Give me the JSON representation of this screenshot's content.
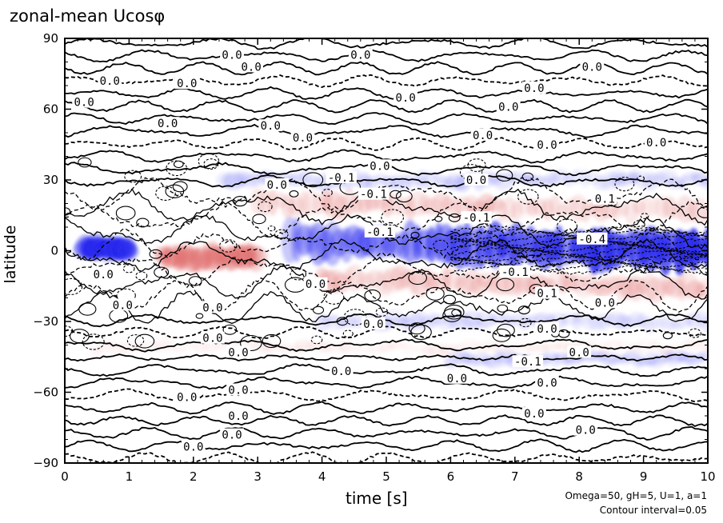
{
  "chart_data": {
    "type": "contour",
    "title": "zonal-mean Ucosφ",
    "xlabel": "time [s]",
    "ylabel": "latitude",
    "xlim": [
      0,
      10
    ],
    "ylim": [
      -90,
      90
    ],
    "xticks": [
      0,
      1,
      2,
      3,
      4,
      5,
      6,
      7,
      8,
      9,
      10
    ],
    "yticks": [
      90,
      60,
      30,
      0,
      -30,
      -60,
      -90
    ],
    "contour_interval": 0.05,
    "colors": {
      "positive": "#e06a6a",
      "negative": "#2a2aee",
      "contour": "#000000"
    },
    "contour_labels": [
      {
        "text": "0.0",
        "t": 2.6,
        "lat": 83
      },
      {
        "text": "0.0",
        "t": 2.9,
        "lat": 78
      },
      {
        "text": "0.0",
        "t": 4.6,
        "lat": 83
      },
      {
        "text": "0.0",
        "t": 8.2,
        "lat": 78
      },
      {
        "text": "0.0",
        "t": 0.7,
        "lat": 72
      },
      {
        "text": "0.0",
        "t": 1.9,
        "lat": 71
      },
      {
        "text": "0.0",
        "t": 7.3,
        "lat": 69
      },
      {
        "text": "0.0",
        "t": 5.3,
        "lat": 65
      },
      {
        "text": "0.0",
        "t": 0.3,
        "lat": 63
      },
      {
        "text": "0.0",
        "t": 6.9,
        "lat": 61
      },
      {
        "text": "0.0",
        "t": 1.6,
        "lat": 54
      },
      {
        "text": "0.0",
        "t": 3.2,
        "lat": 53
      },
      {
        "text": "0.0",
        "t": 3.7,
        "lat": 48
      },
      {
        "text": "0.0",
        "t": 6.5,
        "lat": 49
      },
      {
        "text": "0.0",
        "t": 7.5,
        "lat": 45
      },
      {
        "text": "0.0",
        "t": 9.2,
        "lat": 46
      },
      {
        "text": "0.0",
        "t": 4.9,
        "lat": 36
      },
      {
        "text": "0.0",
        "t": 3.3,
        "lat": 28
      },
      {
        "text": "0.0",
        "t": 6.4,
        "lat": 30
      },
      {
        "text": "-0.1",
        "t": 4.3,
        "lat": 31
      },
      {
        "text": "-0.1",
        "t": 4.8,
        "lat": 24
      },
      {
        "text": "0.1",
        "t": 8.4,
        "lat": 22
      },
      {
        "text": "-0.1",
        "t": 6.4,
        "lat": 14
      },
      {
        "text": "-0.1",
        "t": 4.9,
        "lat": 8
      },
      {
        "text": "-0.4",
        "t": 8.2,
        "lat": 5
      },
      {
        "text": "0.0",
        "t": 0.6,
        "lat": -10
      },
      {
        "text": "0.0",
        "t": 3.9,
        "lat": -14
      },
      {
        "text": "-0.1",
        "t": 7.0,
        "lat": -9
      },
      {
        "text": "0.1",
        "t": 7.5,
        "lat": -18
      },
      {
        "text": "0.0",
        "t": 8.4,
        "lat": -22
      },
      {
        "text": "0.0",
        "t": 0.9,
        "lat": -23
      },
      {
        "text": "0.0",
        "t": 2.3,
        "lat": -24
      },
      {
        "text": "0.0",
        "t": 4.8,
        "lat": -31
      },
      {
        "text": "0.0",
        "t": 7.5,
        "lat": -33
      },
      {
        "text": "0.0",
        "t": 2.3,
        "lat": -37
      },
      {
        "text": "0.0",
        "t": 2.7,
        "lat": -43
      },
      {
        "text": "0.0",
        "t": 8.0,
        "lat": -43
      },
      {
        "text": "0.0",
        "t": 4.3,
        "lat": -51
      },
      {
        "text": "-0.1",
        "t": 7.2,
        "lat": -47
      },
      {
        "text": "0.0",
        "t": 6.1,
        "lat": -54
      },
      {
        "text": "0.0",
        "t": 7.5,
        "lat": -56
      },
      {
        "text": "0.0",
        "t": 2.7,
        "lat": -59
      },
      {
        "text": "0.0",
        "t": 1.9,
        "lat": -62
      },
      {
        "text": "0.0",
        "t": 2.7,
        "lat": -70
      },
      {
        "text": "0.0",
        "t": 7.3,
        "lat": -69
      },
      {
        "text": "0.0",
        "t": 8.1,
        "lat": -76
      },
      {
        "text": "0.0",
        "t": 2.6,
        "lat": -78
      },
      {
        "text": "0.0",
        "t": 2.0,
        "lat": -83
      }
    ],
    "features": [
      {
        "sign": "negative",
        "t0": 3.5,
        "t1": 10.0,
        "lat_c0": 4,
        "lat_c1": 0,
        "width": 10,
        "amp": 0.45
      },
      {
        "sign": "negative",
        "t0": 0.3,
        "t1": 1.0,
        "lat_c0": 1,
        "lat_c1": 1,
        "width": 5,
        "amp": 0.2
      },
      {
        "sign": "positive",
        "t0": 3.0,
        "t1": 10.0,
        "lat_c0": 20,
        "lat_c1": 17,
        "width": 6,
        "amp": 0.12
      },
      {
        "sign": "positive",
        "t0": 4.0,
        "t1": 10.0,
        "lat_c0": -12,
        "lat_c1": -16,
        "width": 6,
        "amp": 0.12
      },
      {
        "sign": "positive",
        "t0": 1.5,
        "t1": 3.0,
        "lat_c0": -3,
        "lat_c1": -3,
        "width": 6,
        "amp": 0.15
      },
      {
        "sign": "negative",
        "t0": 2.5,
        "t1": 10.0,
        "lat_c0": 30,
        "lat_c1": 30,
        "width": 4,
        "amp": 0.08
      },
      {
        "sign": "negative",
        "t0": 4.0,
        "t1": 10.0,
        "lat_c0": -30,
        "lat_c1": -30,
        "width": 4,
        "amp": 0.05
      },
      {
        "sign": "negative",
        "t0": 6.0,
        "t1": 10.0,
        "lat_c0": -46,
        "lat_c1": -46,
        "width": 3,
        "amp": 0.05
      },
      {
        "sign": "positive",
        "t0": 0.5,
        "t1": 10.0,
        "lat_c0": -41,
        "lat_c1": -41,
        "width": 3,
        "amp": 0.04
      }
    ]
  },
  "annotations": {
    "params": "Omega=50, gH=5, U=1, a=1",
    "interval": "Contour interval=0.05"
  }
}
